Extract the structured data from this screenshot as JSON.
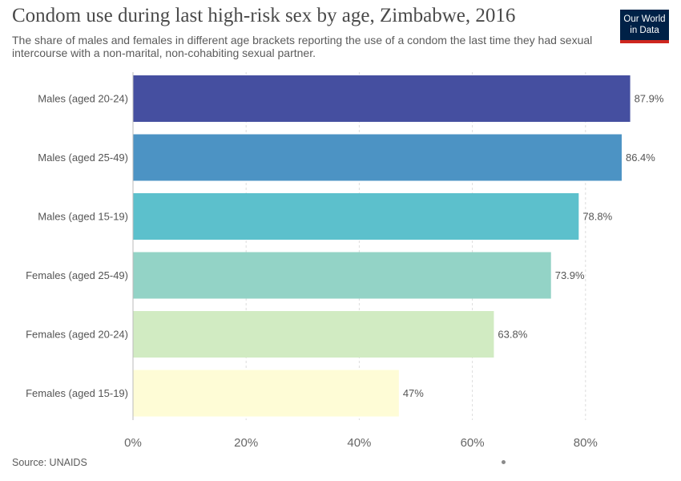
{
  "header": {
    "title": "Condom use during last high-risk sex by age, Zimbabwe, 2016",
    "subtitle": "The share of males and females in different age brackets reporting the use of a condom the last time they had sexual intercourse with a non-marital, non-cohabiting sexual partner."
  },
  "logo": {
    "line1": "Our World",
    "line2": "in Data",
    "background": "#002147",
    "accent": "#ce261e"
  },
  "footer": {
    "source": "Source: UNAIDS"
  },
  "chart_data": {
    "type": "bar",
    "orientation": "horizontal",
    "categories": [
      "Males (aged 20-24)",
      "Males (aged 25-49)",
      "Males (aged 15-19)",
      "Females (aged 25-49)",
      "Females (aged 20-24)",
      "Females (aged 15-19)"
    ],
    "values": [
      87.9,
      86.4,
      78.8,
      73.9,
      63.8,
      47
    ],
    "value_labels": [
      "87.9%",
      "86.4%",
      "78.8%",
      "73.9%",
      "63.8%",
      "47%"
    ],
    "colors": [
      "#454fa0",
      "#4c93c4",
      "#5cc0cc",
      "#93d3c6",
      "#d1ebc2",
      "#fefcd6"
    ],
    "xlim": [
      0,
      88
    ],
    "xticks": [
      0,
      20,
      40,
      60,
      80
    ],
    "xtick_labels": [
      "0%",
      "20%",
      "40%",
      "60%",
      "80%"
    ],
    "grid": true,
    "legend": false
  }
}
